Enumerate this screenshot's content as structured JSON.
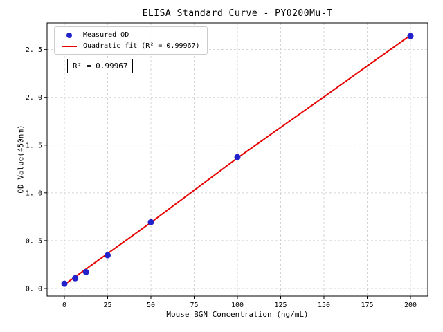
{
  "chart_data": {
    "type": "scatter",
    "title": "ELISA Standard Curve - PY0200Mu-T",
    "xlabel": "Mouse BGN Concentration (ng/mL)",
    "ylabel": "OD Value(450nm)",
    "xlim": [
      -10,
      210
    ],
    "ylim": [
      -0.08,
      2.78
    ],
    "grid": true,
    "x_ticks": [
      0,
      25,
      50,
      75,
      100,
      125,
      150,
      175,
      200
    ],
    "x_tick_labels": [
      "0",
      "25",
      "50",
      "75",
      "100",
      "125",
      "150",
      "175",
      "200"
    ],
    "y_ticks": [
      0.0,
      0.5,
      1.0,
      1.5,
      2.0,
      2.5
    ],
    "y_tick_labels": [
      "0. 0",
      "0. 5",
      "1. 0",
      "1. 5",
      "2. 0",
      "2. 5"
    ],
    "legend": {
      "position": "upper-left",
      "entries": [
        {
          "label": "Measured OD",
          "marker": "dot",
          "color": "#2222cc"
        },
        {
          "label": "Quadratic fit (R² = 0.99967)",
          "marker": "line",
          "color": "#e60000"
        }
      ]
    },
    "annotation": "R² = 0.99967",
    "series": [
      {
        "name": "Measured OD",
        "type": "scatter",
        "color": "#2222cc",
        "points": [
          {
            "x": 0,
            "y": 0.049
          },
          {
            "x": 6.25,
            "y": 0.106
          },
          {
            "x": 12.5,
            "y": 0.171
          },
          {
            "x": 25,
            "y": 0.347
          },
          {
            "x": 50,
            "y": 0.693
          },
          {
            "x": 100,
            "y": 1.374
          },
          {
            "x": 200,
            "y": 2.642
          }
        ]
      },
      {
        "name": "Quadratic fit",
        "type": "line",
        "color": "#e60000",
        "points": [
          {
            "x": 0,
            "y": 0.04
          },
          {
            "x": 50,
            "y": 0.69
          },
          {
            "x": 100,
            "y": 1.365
          },
          {
            "x": 150,
            "y": 2.005
          },
          {
            "x": 200,
            "y": 2.65
          }
        ]
      }
    ]
  }
}
